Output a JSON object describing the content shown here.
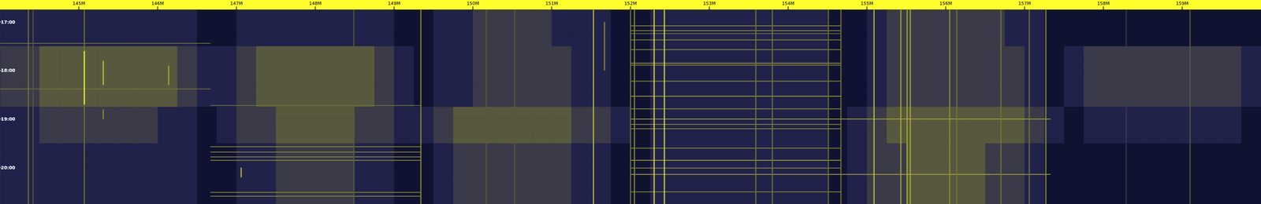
{
  "chart_data": {
    "type": "heatmap",
    "xlim": [
      144,
      160
    ],
    "xticks": [
      {
        "value": 145,
        "label": "145M"
      },
      {
        "value": 146,
        "label": "146M"
      },
      {
        "value": 147,
        "label": "147M"
      },
      {
        "value": 148,
        "label": "148M"
      },
      {
        "value": 149,
        "label": "149M"
      },
      {
        "value": 150,
        "label": "150M"
      },
      {
        "value": 151,
        "label": "151M"
      },
      {
        "value": 152,
        "label": "152M"
      },
      {
        "value": 153,
        "label": "153M"
      },
      {
        "value": 154,
        "label": "154M"
      },
      {
        "value": 155,
        "label": "155M"
      },
      {
        "value": 156,
        "label": "156M"
      },
      {
        "value": 157,
        "label": "157M"
      },
      {
        "value": 158,
        "label": "158M"
      },
      {
        "value": 159,
        "label": "159M"
      }
    ],
    "ylim": [
      16.75,
      20.75
    ],
    "yticks": [
      {
        "value": 17,
        "label": "17:00"
      },
      {
        "value": 18,
        "label": "18:00"
      },
      {
        "value": 19,
        "label": "19:00"
      },
      {
        "value": 20,
        "label": "20:00"
      }
    ],
    "zlim": [
      0,
      9
    ],
    "cells": [
      [
        1,
        1,
        1,
        1,
        1,
        1,
        1,
        1,
        1,
        1,
        0,
        0,
        1,
        1,
        1,
        1,
        1,
        1,
        1,
        1,
        0,
        0,
        1,
        1,
        2,
        2,
        2,
        2,
        1,
        1,
        1,
        0,
        0,
        1,
        1,
        1,
        1,
        1,
        1,
        1,
        1,
        1,
        0,
        0,
        1,
        2,
        2,
        2,
        2,
        2,
        2,
        1,
        1,
        0,
        0,
        0,
        0,
        0,
        0,
        0,
        0,
        0,
        0,
        0
      ],
      [
        1,
        1,
        1,
        1,
        1,
        1,
        1,
        1,
        1,
        1,
        0,
        0,
        1,
        1,
        1,
        1,
        1,
        1,
        1,
        1,
        0,
        0,
        1,
        1,
        2,
        2,
        2,
        2,
        1,
        1,
        1,
        0,
        0,
        1,
        1,
        1,
        1,
        1,
        1,
        1,
        1,
        1,
        0,
        0,
        1,
        2,
        2,
        2,
        2,
        2,
        2,
        1,
        1,
        0,
        0,
        0,
        0,
        0,
        0,
        0,
        0,
        0,
        0,
        0
      ],
      [
        1,
        1,
        1,
        1,
        1,
        1,
        1,
        1,
        1,
        1,
        0,
        0,
        1,
        1,
        1,
        1,
        1,
        1,
        1,
        1,
        0,
        0,
        1,
        1,
        2,
        2,
        2,
        2,
        1,
        1,
        1,
        0,
        0,
        1,
        1,
        1,
        1,
        1,
        1,
        1,
        1,
        1,
        0,
        0,
        1,
        2,
        2,
        2,
        2,
        2,
        2,
        1,
        1,
        0,
        0,
        0,
        0,
        0,
        0,
        0,
        0,
        0,
        0,
        0
      ],
      [
        2,
        2,
        3,
        3,
        3,
        3,
        3,
        3,
        3,
        2,
        1,
        1,
        2,
        3,
        3,
        3,
        3,
        3,
        3,
        2,
        1,
        0,
        1,
        1,
        2,
        2,
        2,
        2,
        2,
        1,
        1,
        0,
        0,
        1,
        1,
        1,
        1,
        1,
        1,
        1,
        1,
        1,
        0,
        0,
        1,
        2,
        2,
        2,
        2,
        2,
        2,
        2,
        1,
        0,
        1,
        2,
        2,
        2,
        2,
        2,
        2,
        2,
        2,
        1
      ],
      [
        2,
        2,
        3,
        3,
        3,
        3,
        3,
        3,
        3,
        2,
        1,
        1,
        2,
        3,
        3,
        3,
        3,
        3,
        3,
        2,
        1,
        0,
        1,
        1,
        2,
        2,
        2,
        2,
        2,
        1,
        1,
        0,
        0,
        1,
        1,
        1,
        1,
        1,
        1,
        1,
        1,
        1,
        0,
        0,
        1,
        2,
        2,
        2,
        2,
        2,
        2,
        2,
        1,
        0,
        1,
        2,
        2,
        2,
        2,
        2,
        2,
        2,
        2,
        1
      ],
      [
        2,
        2,
        3,
        3,
        3,
        3,
        3,
        3,
        3,
        2,
        1,
        1,
        2,
        3,
        3,
        3,
        3,
        3,
        3,
        2,
        1,
        0,
        1,
        1,
        2,
        2,
        2,
        2,
        2,
        1,
        1,
        0,
        0,
        1,
        1,
        1,
        1,
        1,
        1,
        1,
        1,
        1,
        0,
        0,
        1,
        2,
        2,
        2,
        2,
        2,
        2,
        2,
        1,
        0,
        1,
        2,
        2,
        2,
        2,
        2,
        2,
        2,
        2,
        1
      ],
      [
        2,
        2,
        3,
        3,
        3,
        3,
        3,
        3,
        3,
        2,
        1,
        1,
        2,
        3,
        3,
        3,
        3,
        3,
        3,
        2,
        1,
        0,
        1,
        1,
        2,
        2,
        2,
        2,
        2,
        1,
        1,
        0,
        0,
        1,
        1,
        1,
        1,
        1,
        1,
        1,
        1,
        1,
        0,
        0,
        1,
        2,
        2,
        2,
        2,
        2,
        2,
        2,
        1,
        0,
        1,
        2,
        2,
        2,
        2,
        2,
        2,
        2,
        2,
        1
      ],
      [
        2,
        2,
        3,
        3,
        3,
        3,
        3,
        3,
        3,
        2,
        1,
        1,
        2,
        3,
        3,
        3,
        3,
        3,
        3,
        2,
        1,
        0,
        1,
        1,
        2,
        2,
        2,
        2,
        2,
        1,
        1,
        0,
        0,
        1,
        1,
        1,
        1,
        1,
        1,
        1,
        1,
        1,
        0,
        0,
        1,
        2,
        2,
        2,
        2,
        2,
        2,
        2,
        1,
        0,
        1,
        2,
        2,
        2,
        2,
        2,
        2,
        2,
        2,
        1
      ],
      [
        1,
        1,
        2,
        2,
        2,
        2,
        2,
        2,
        1,
        1,
        0,
        1,
        2,
        2,
        3,
        3,
        3,
        3,
        2,
        2,
        1,
        1,
        2,
        3,
        3,
        3,
        3,
        3,
        3,
        2,
        2,
        1,
        0,
        1,
        1,
        1,
        1,
        1,
        1,
        1,
        1,
        1,
        0,
        1,
        2,
        3,
        3,
        3,
        3,
        3,
        3,
        3,
        2,
        1,
        0,
        1,
        1,
        1,
        1,
        1,
        1,
        1,
        1,
        0
      ],
      [
        1,
        1,
        2,
        2,
        2,
        2,
        2,
        2,
        1,
        1,
        0,
        1,
        2,
        2,
        3,
        3,
        3,
        3,
        2,
        2,
        1,
        1,
        2,
        3,
        3,
        3,
        3,
        3,
        3,
        2,
        2,
        1,
        0,
        1,
        1,
        1,
        1,
        1,
        1,
        1,
        1,
        1,
        0,
        1,
        2,
        3,
        3,
        3,
        3,
        3,
        3,
        3,
        2,
        1,
        0,
        1,
        1,
        1,
        1,
        1,
        1,
        1,
        1,
        0
      ],
      [
        1,
        1,
        2,
        2,
        2,
        2,
        2,
        2,
        1,
        1,
        0,
        1,
        2,
        2,
        3,
        3,
        3,
        3,
        2,
        2,
        1,
        1,
        2,
        3,
        3,
        3,
        3,
        3,
        3,
        2,
        2,
        1,
        0,
        1,
        1,
        1,
        1,
        1,
        1,
        1,
        1,
        1,
        0,
        1,
        2,
        3,
        3,
        3,
        3,
        3,
        3,
        3,
        2,
        1,
        0,
        1,
        1,
        1,
        1,
        1,
        1,
        1,
        1,
        0
      ],
      [
        1,
        1,
        1,
        1,
        1,
        1,
        1,
        1,
        1,
        1,
        0,
        0,
        1,
        1,
        2,
        2,
        2,
        2,
        1,
        1,
        0,
        0,
        1,
        2,
        2,
        2,
        2,
        2,
        2,
        1,
        1,
        0,
        0,
        1,
        1,
        1,
        1,
        1,
        1,
        1,
        1,
        1,
        0,
        1,
        2,
        2,
        3,
        3,
        3,
        3,
        2,
        2,
        1,
        0,
        0,
        0,
        0,
        0,
        0,
        0,
        0,
        0,
        0,
        0
      ],
      [
        1,
        1,
        1,
        1,
        1,
        1,
        1,
        1,
        1,
        1,
        0,
        0,
        1,
        1,
        2,
        2,
        2,
        2,
        1,
        1,
        0,
        0,
        1,
        2,
        2,
        2,
        2,
        2,
        2,
        1,
        1,
        0,
        0,
        1,
        1,
        1,
        1,
        1,
        1,
        1,
        1,
        1,
        0,
        1,
        2,
        2,
        3,
        3,
        3,
        3,
        2,
        2,
        1,
        0,
        0,
        0,
        0,
        0,
        0,
        0,
        0,
        0,
        0,
        0
      ],
      [
        1,
        1,
        1,
        1,
        1,
        1,
        1,
        1,
        1,
        1,
        0,
        0,
        1,
        1,
        2,
        2,
        2,
        2,
        1,
        1,
        0,
        0,
        1,
        2,
        2,
        2,
        2,
        2,
        2,
        1,
        1,
        0,
        0,
        1,
        1,
        1,
        1,
        1,
        1,
        1,
        1,
        1,
        0,
        1,
        2,
        2,
        3,
        3,
        3,
        3,
        2,
        2,
        1,
        0,
        0,
        0,
        0,
        0,
        0,
        0,
        0,
        0,
        0,
        0
      ],
      [
        1,
        1,
        1,
        1,
        1,
        1,
        1,
        1,
        1,
        1,
        0,
        0,
        1,
        1,
        2,
        2,
        2,
        2,
        1,
        1,
        0,
        0,
        1,
        2,
        2,
        2,
        2,
        2,
        2,
        1,
        1,
        0,
        0,
        1,
        1,
        1,
        1,
        1,
        1,
        1,
        1,
        1,
        0,
        1,
        2,
        2,
        3,
        3,
        3,
        3,
        2,
        2,
        1,
        0,
        0,
        0,
        0,
        0,
        0,
        0,
        0,
        0,
        0,
        0
      ],
      [
        1,
        1,
        1,
        1,
        1,
        1,
        1,
        1,
        1,
        1,
        0,
        0,
        1,
        1,
        2,
        2,
        2,
        2,
        1,
        1,
        0,
        0,
        1,
        2,
        2,
        2,
        2,
        2,
        2,
        1,
        1,
        0,
        0,
        1,
        1,
        1,
        1,
        1,
        1,
        1,
        1,
        1,
        0,
        1,
        2,
        2,
        3,
        3,
        3,
        3,
        2,
        2,
        1,
        0,
        0,
        0,
        0,
        0,
        0,
        0,
        0,
        0,
        0,
        0
      ]
    ],
    "carriers": [
      {
        "freq": 144.36,
        "from": 16.75,
        "to": 20.75,
        "level": 4
      },
      {
        "freq": 144.42,
        "from": 16.75,
        "to": 20.75,
        "level": 3
      },
      {
        "freq": 145.07,
        "from": 16.75,
        "to": 20.75,
        "level": 4
      },
      {
        "freq": 145.07,
        "from": 17.6,
        "to": 18.7,
        "level": 9
      },
      {
        "freq": 145.31,
        "from": 17.8,
        "to": 18.3,
        "level": 7
      },
      {
        "freq": 145.31,
        "from": 18.8,
        "to": 19.0,
        "level": 5
      },
      {
        "freq": 146.14,
        "from": 17.9,
        "to": 18.3,
        "level": 6
      },
      {
        "freq": 147.06,
        "from": 20.0,
        "to": 20.2,
        "level": 7
      },
      {
        "freq": 148.49,
        "from": 16.75,
        "to": 20.75,
        "level": 3
      },
      {
        "freq": 149.34,
        "from": 16.75,
        "to": 20.75,
        "level": 5
      },
      {
        "freq": 150.17,
        "from": 16.75,
        "to": 20.75,
        "level": 3
      },
      {
        "freq": 150.53,
        "from": 16.75,
        "to": 20.75,
        "level": 3
      },
      {
        "freq": 151.53,
        "from": 16.75,
        "to": 20.75,
        "level": 7
      },
      {
        "freq": 151.67,
        "from": 17.0,
        "to": 18.0,
        "level": 5
      },
      {
        "freq": 152.0,
        "from": 16.75,
        "to": 20.75,
        "level": 4
      },
      {
        "freq": 152.05,
        "from": 16.75,
        "to": 20.75,
        "level": 5
      },
      {
        "freq": 152.3,
        "from": 16.75,
        "to": 20.75,
        "level": 8
      },
      {
        "freq": 152.43,
        "from": 16.75,
        "to": 20.75,
        "level": 8
      },
      {
        "freq": 153.59,
        "from": 16.75,
        "to": 20.75,
        "level": 4
      },
      {
        "freq": 153.8,
        "from": 16.75,
        "to": 20.75,
        "level": 4
      },
      {
        "freq": 154.51,
        "from": 16.75,
        "to": 20.75,
        "level": 4
      },
      {
        "freq": 154.67,
        "from": 16.75,
        "to": 20.75,
        "level": 4
      },
      {
        "freq": 155.09,
        "from": 16.75,
        "to": 20.75,
        "level": 7
      },
      {
        "freq": 155.43,
        "from": 16.75,
        "to": 20.75,
        "level": 6
      },
      {
        "freq": 155.51,
        "from": 16.75,
        "to": 20.75,
        "level": 6
      },
      {
        "freq": 155.55,
        "from": 16.75,
        "to": 20.75,
        "level": 6
      },
      {
        "freq": 156.05,
        "from": 16.75,
        "to": 20.75,
        "level": 5
      },
      {
        "freq": 156.14,
        "from": 16.75,
        "to": 20.75,
        "level": 4
      },
      {
        "freq": 156.7,
        "from": 16.75,
        "to": 20.75,
        "level": 4
      },
      {
        "freq": 157.06,
        "from": 16.75,
        "to": 20.75,
        "level": 4
      },
      {
        "freq": 157.27,
        "from": 16.75,
        "to": 20.75,
        "level": 5
      },
      {
        "freq": 158.29,
        "from": 16.75,
        "to": 20.75,
        "level": 2
      },
      {
        "freq": 159.1,
        "from": 16.75,
        "to": 20.75,
        "level": 3
      }
    ],
    "bursts": [
      {
        "time": 17.08,
        "start": 152.0,
        "end": 154.67,
        "level": 5
      },
      {
        "time": 17.18,
        "start": 152.0,
        "end": 154.67,
        "level": 5
      },
      {
        "time": 17.24,
        "start": 152.0,
        "end": 154.67,
        "level": 4
      },
      {
        "time": 17.37,
        "start": 152.0,
        "end": 154.67,
        "level": 5
      },
      {
        "time": 17.44,
        "start": 144.0,
        "end": 146.67,
        "level": 4
      },
      {
        "time": 17.57,
        "start": 152.0,
        "end": 154.67,
        "level": 5
      },
      {
        "time": 17.85,
        "start": 152.0,
        "end": 154.67,
        "level": 6
      },
      {
        "time": 17.89,
        "start": 152.0,
        "end": 154.67,
        "level": 5
      },
      {
        "time": 18.22,
        "start": 152.0,
        "end": 154.67,
        "level": 5
      },
      {
        "time": 18.38,
        "start": 144.0,
        "end": 146.67,
        "level": 4
      },
      {
        "time": 18.53,
        "start": 152.0,
        "end": 154.67,
        "level": 6
      },
      {
        "time": 18.72,
        "start": 146.67,
        "end": 149.34,
        "level": 4
      },
      {
        "time": 18.79,
        "start": 152.0,
        "end": 154.67,
        "level": 5
      },
      {
        "time": 19.0,
        "start": 152.0,
        "end": 157.33,
        "level": 6
      },
      {
        "time": 19.11,
        "start": 152.0,
        "end": 154.67,
        "level": 5
      },
      {
        "time": 19.2,
        "start": 152.0,
        "end": 154.67,
        "level": 5
      },
      {
        "time": 19.57,
        "start": 146.67,
        "end": 149.34,
        "level": 5
      },
      {
        "time": 19.6,
        "start": 152.0,
        "end": 154.67,
        "level": 5
      },
      {
        "time": 19.68,
        "start": 146.67,
        "end": 149.34,
        "level": 5
      },
      {
        "time": 19.78,
        "start": 146.67,
        "end": 149.34,
        "level": 5
      },
      {
        "time": 19.85,
        "start": 146.67,
        "end": 149.34,
        "level": 5
      },
      {
        "time": 19.85,
        "start": 152.0,
        "end": 154.67,
        "level": 6
      },
      {
        "time": 20.01,
        "start": 152.0,
        "end": 154.67,
        "level": 5
      },
      {
        "time": 20.14,
        "start": 152.0,
        "end": 157.33,
        "level": 6
      },
      {
        "time": 20.5,
        "start": 152.0,
        "end": 154.67,
        "level": 5
      },
      {
        "time": 20.51,
        "start": 146.67,
        "end": 149.34,
        "level": 5
      },
      {
        "time": 20.59,
        "start": 146.67,
        "end": 149.34,
        "level": 5
      }
    ]
  }
}
